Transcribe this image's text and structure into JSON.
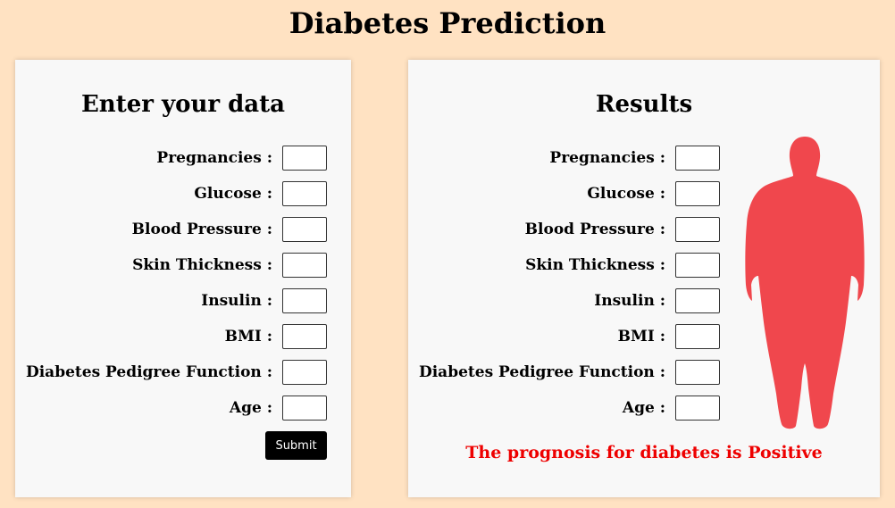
{
  "page": {
    "title": "Diabetes Prediction"
  },
  "input_panel": {
    "title": "Enter your data",
    "fields": [
      {
        "label": "Pregnancies :",
        "value": ""
      },
      {
        "label": "Glucose :",
        "value": ""
      },
      {
        "label": "Blood Pressure :",
        "value": ""
      },
      {
        "label": "Skin Thickness :",
        "value": ""
      },
      {
        "label": "Insulin :",
        "value": ""
      },
      {
        "label": "BMI :",
        "value": ""
      },
      {
        "label": "Diabetes Pedigree Function :",
        "value": ""
      },
      {
        "label": "Age :",
        "value": ""
      }
    ],
    "submit_label": "Submit"
  },
  "results_panel": {
    "title": "Results",
    "fields": [
      {
        "label": "Pregnancies :",
        "value": ""
      },
      {
        "label": "Glucose :",
        "value": ""
      },
      {
        "label": "Blood Pressure :",
        "value": ""
      },
      {
        "label": "Skin Thickness :",
        "value": ""
      },
      {
        "label": "Insulin :",
        "value": ""
      },
      {
        "label": "BMI :",
        "value": ""
      },
      {
        "label": "Diabetes Pedigree Function :",
        "value": ""
      },
      {
        "label": "Age :",
        "value": ""
      }
    ],
    "result_text": "The prognosis for diabetes is Positive",
    "result_color": "#ee0000",
    "figure_icon": "human-body-silhouette-icon",
    "figure_color": "#f0474d"
  },
  "colors": {
    "background": "#ffe2c2",
    "card_background": "#f8f8f8",
    "button_background": "#000000"
  }
}
